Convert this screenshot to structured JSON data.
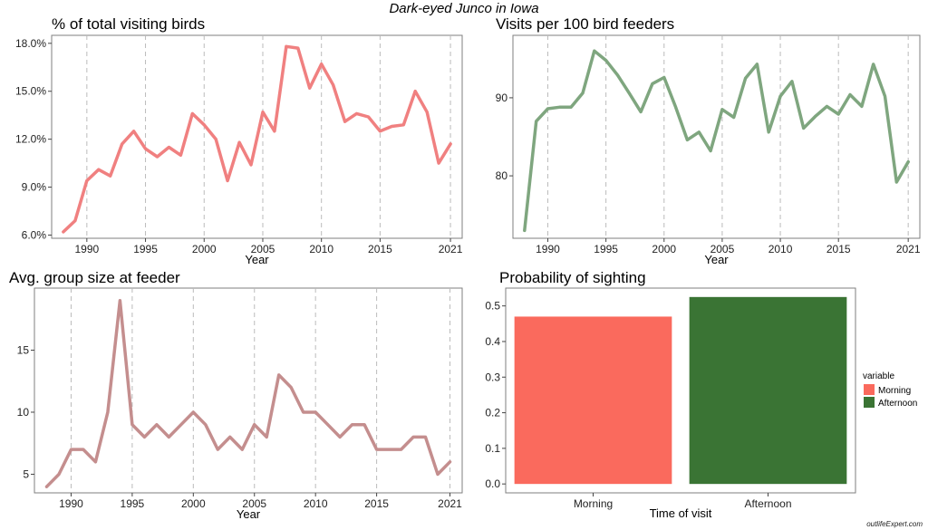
{
  "header": {
    "title": "Dark-eyed Junco in Iowa"
  },
  "watermark": "outlifeExpert.com",
  "colors": {
    "panel1_line": "#f08080",
    "panel2_line": "#7fa67f",
    "panel3_line": "#c48e8e",
    "morning": "#fa6a5d",
    "afternoon": "#3a7434",
    "grid": "#bbbbbb"
  },
  "chart_data": [
    {
      "type": "line",
      "title": "% of total visiting birds",
      "xlabel": "Year",
      "ylabel": "",
      "xlim": [
        1987,
        2022
      ],
      "ylim": [
        5.8,
        18.5
      ],
      "yticks": [
        6,
        9,
        12,
        15,
        18
      ],
      "ytick_labels": [
        "6.0%",
        "9.0%",
        "12.0%",
        "15.0%",
        "18.0%"
      ],
      "xticks": [
        1990,
        1995,
        2000,
        2005,
        2010,
        2015,
        2021
      ],
      "grid": "vertical dashed",
      "x": [
        1988,
        1989,
        1990,
        1991,
        1992,
        1993,
        1994,
        1995,
        1996,
        1997,
        1998,
        1999,
        2000,
        2001,
        2002,
        2003,
        2004,
        2005,
        2006,
        2007,
        2008,
        2009,
        2010,
        2011,
        2012,
        2013,
        2014,
        2015,
        2016,
        2017,
        2018,
        2019,
        2020,
        2021
      ],
      "values": [
        6.2,
        6.9,
        9.4,
        10.1,
        9.7,
        11.7,
        12.5,
        11.4,
        10.9,
        11.5,
        11.0,
        13.6,
        12.9,
        12.0,
        9.4,
        11.8,
        10.4,
        13.7,
        12.5,
        17.8,
        17.7,
        15.2,
        16.7,
        15.4,
        13.1,
        13.6,
        13.4,
        12.5,
        12.8,
        12.9,
        15.0,
        13.7,
        10.5,
        11.7
      ]
    },
    {
      "type": "line",
      "title": "Visits per 100 bird feeders",
      "xlabel": "Year",
      "ylabel": "",
      "xlim": [
        1987,
        2022
      ],
      "ylim": [
        72,
        98
      ],
      "yticks": [
        80,
        90
      ],
      "ytick_labels": [
        "80",
        "90"
      ],
      "xticks": [
        1990,
        1995,
        2000,
        2005,
        2010,
        2015,
        2021
      ],
      "grid": "vertical dashed",
      "x": [
        1988,
        1989,
        1990,
        1991,
        1992,
        1993,
        1994,
        1995,
        1996,
        1997,
        1998,
        1999,
        2000,
        2001,
        2002,
        2003,
        2004,
        2005,
        2006,
        2007,
        2008,
        2009,
        2010,
        2011,
        2012,
        2013,
        2014,
        2015,
        2016,
        2017,
        2018,
        2019,
        2020,
        2021
      ],
      "values": [
        73.0,
        87.0,
        88.6,
        88.8,
        88.8,
        90.6,
        96.0,
        94.8,
        92.9,
        90.6,
        88.2,
        91.8,
        92.6,
        88.8,
        84.6,
        85.6,
        83.2,
        88.5,
        87.5,
        92.5,
        94.3,
        85.6,
        90.2,
        92.1,
        86.1,
        87.6,
        88.9,
        87.9,
        90.4,
        88.9,
        94.3,
        90.2,
        79.2,
        81.8
      ]
    },
    {
      "type": "line",
      "title": "Avg. group size at feeder",
      "xlabel": "Year",
      "ylabel": "",
      "xlim": [
        1987,
        2022
      ],
      "ylim": [
        3.5,
        20
      ],
      "yticks": [
        5,
        10,
        15
      ],
      "ytick_labels": [
        "5",
        "10",
        "15"
      ],
      "xticks": [
        1990,
        1995,
        2000,
        2005,
        2010,
        2015,
        2021
      ],
      "grid": "vertical dashed",
      "x": [
        1988,
        1989,
        1990,
        1991,
        1992,
        1993,
        1994,
        1995,
        1996,
        1997,
        1998,
        1999,
        2000,
        2001,
        2002,
        2003,
        2004,
        2005,
        2006,
        2007,
        2008,
        2009,
        2010,
        2011,
        2012,
        2013,
        2014,
        2015,
        2016,
        2017,
        2018,
        2019,
        2020,
        2021
      ],
      "values": [
        4,
        5,
        7,
        7,
        6,
        10,
        19,
        9,
        8,
        9,
        8,
        9,
        10,
        9,
        7,
        8,
        7,
        9,
        8,
        13,
        12,
        10,
        10,
        9,
        8,
        9,
        9,
        7,
        7,
        7,
        8,
        8,
        5,
        6
      ]
    },
    {
      "type": "bar",
      "title": "Probability of sighting",
      "xlabel": "Time of visit",
      "ylabel": "",
      "ylim": [
        -0.025,
        0.55
      ],
      "yticks": [
        0.0,
        0.1,
        0.2,
        0.3,
        0.4,
        0.5
      ],
      "ytick_labels": [
        "0.0",
        "0.1",
        "0.2",
        "0.3",
        "0.4",
        "0.5"
      ],
      "categories": [
        "Morning",
        "Afternoon"
      ],
      "values": [
        0.47,
        0.525
      ],
      "legend": {
        "title": "variable",
        "entries": [
          "Morning",
          "Afternoon"
        ],
        "position": "right"
      }
    }
  ]
}
